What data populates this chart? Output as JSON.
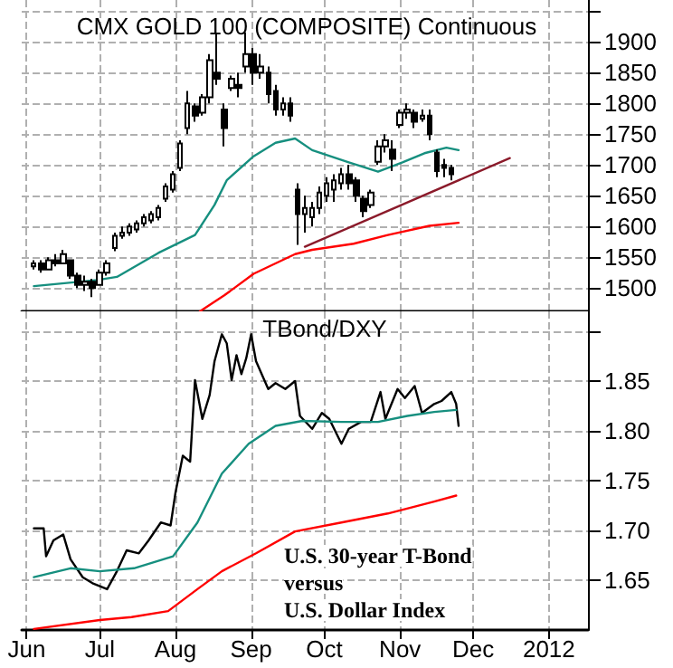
{
  "chart_data": [
    {
      "type": "candlestick",
      "title": "CMX GOLD 100 (COMPOSITE) Continuous",
      "grid": true,
      "tick_labels": "y",
      "line_style": "solid",
      "xlim": [
        "2011-05-30",
        "2012-01-17"
      ],
      "xticks": [
        {
          "value": "2011-06-01",
          "label": null
        },
        {
          "value": "2011-07-01",
          "label": null
        },
        {
          "value": "2011-08-01",
          "label": null
        },
        {
          "value": "2011-09-01",
          "label": null
        },
        {
          "value": "2011-10-01",
          "label": null
        },
        {
          "value": "2011-11-01",
          "label": null
        },
        {
          "value": "2011-12-01",
          "label": null
        },
        {
          "value": "2012-01-01",
          "label": null
        }
      ],
      "ylim": [
        1462,
        1968
      ],
      "yticks": [
        1500,
        1550,
        1600,
        1650,
        1700,
        1750,
        1800,
        1850,
        1900,
        {
          "value": 1950,
          "label": null
        }
      ],
      "x": [
        "2011-06-04",
        "2011-06-07",
        "2011-06-10",
        "2011-06-13",
        "2011-06-16",
        "2011-06-19",
        "2011-06-22",
        "2011-06-25",
        "2011-06-28",
        "2011-07-01",
        "2011-07-04",
        "2011-07-07",
        "2011-07-10",
        "2011-07-13",
        "2011-07-16",
        "2011-07-19",
        "2011-07-22",
        "2011-07-25",
        "2011-07-28",
        "2011-07-31",
        "2011-08-03",
        "2011-08-06",
        "2011-08-09",
        "2011-08-12",
        "2011-08-15",
        "2011-08-18",
        "2011-08-21",
        "2011-08-24",
        "2011-08-27",
        "2011-08-30",
        "2011-09-02",
        "2011-09-05",
        "2011-09-08",
        "2011-09-11",
        "2011-09-14",
        "2011-09-17",
        "2011-09-20",
        "2011-09-23",
        "2011-09-26",
        "2011-09-29",
        "2011-10-02",
        "2011-10-05",
        "2011-10-08",
        "2011-10-11",
        "2011-10-14",
        "2011-10-17",
        "2011-10-20",
        "2011-10-23",
        "2011-10-26",
        "2011-10-29",
        "2011-11-01",
        "2011-11-04",
        "2011-11-07",
        "2011-11-10",
        "2011-11-13",
        "2011-11-16",
        "2011-11-19",
        "2011-11-22"
      ],
      "ohlc": [
        [
          1535,
          1545,
          1530,
          1540
        ],
        [
          1540,
          1545,
          1525,
          1530
        ],
        [
          1530,
          1550,
          1530,
          1545
        ],
        [
          1545,
          1555,
          1535,
          1540
        ],
        [
          1540,
          1562,
          1540,
          1555
        ],
        [
          1545,
          1545,
          1515,
          1520
        ],
        [
          1520,
          1525,
          1500,
          1505
        ],
        [
          1505,
          1520,
          1495,
          1510
        ],
        [
          1510,
          1515,
          1485,
          1500
        ],
        [
          1505,
          1530,
          1505,
          1525
        ],
        [
          1525,
          1545,
          1520,
          1540
        ],
        [
          1565,
          1590,
          1560,
          1585
        ],
        [
          1585,
          1600,
          1580,
          1590
        ],
        [
          1590,
          1605,
          1585,
          1600
        ],
        [
          1595,
          1610,
          1590,
          1605
        ],
        [
          1605,
          1620,
          1600,
          1615
        ],
        [
          1610,
          1625,
          1605,
          1620
        ],
        [
          1615,
          1635,
          1610,
          1630
        ],
        [
          1645,
          1670,
          1640,
          1665
        ],
        [
          1660,
          1690,
          1655,
          1685
        ],
        [
          1695,
          1740,
          1690,
          1735
        ],
        [
          1760,
          1820,
          1750,
          1800
        ],
        [
          1795,
          1800,
          1770,
          1780
        ],
        [
          1785,
          1815,
          1780,
          1810
        ],
        [
          1810,
          1880,
          1800,
          1870
        ],
        [
          1850,
          1912,
          1830,
          1840
        ],
        [
          1790,
          1800,
          1730,
          1760
        ],
        [
          1825,
          1845,
          1820,
          1840
        ],
        [
          1830,
          1850,
          1810,
          1825
        ],
        [
          1860,
          1915,
          1850,
          1880
        ],
        [
          1880,
          1890,
          1830,
          1850
        ],
        [
          1850,
          1880,
          1840,
          1860
        ],
        [
          1850,
          1860,
          1800,
          1815
        ],
        [
          1820,
          1830,
          1780,
          1790
        ],
        [
          1790,
          1810,
          1780,
          1800
        ],
        [
          1800,
          1810,
          1770,
          1780
        ],
        [
          1660,
          1670,
          1570,
          1620
        ],
        [
          1620,
          1650,
          1590,
          1630
        ],
        [
          1615,
          1640,
          1600,
          1630
        ],
        [
          1630,
          1665,
          1620,
          1655
        ],
        [
          1650,
          1680,
          1640,
          1670
        ],
        [
          1660,
          1685,
          1640,
          1675
        ],
        [
          1670,
          1695,
          1660,
          1685
        ],
        [
          1685,
          1700,
          1660,
          1670
        ],
        [
          1675,
          1680,
          1640,
          1650
        ],
        [
          1645,
          1650,
          1615,
          1625
        ],
        [
          1635,
          1660,
          1630,
          1655
        ],
        [
          1705,
          1740,
          1700,
          1730
        ],
        [
          1730,
          1750,
          1720,
          1740
        ],
        [
          1725,
          1740,
          1690,
          1710
        ],
        [
          1765,
          1790,
          1760,
          1785
        ],
        [
          1785,
          1800,
          1775,
          1790
        ],
        [
          1785,
          1790,
          1760,
          1770
        ],
        [
          1775,
          1790,
          1770,
          1780
        ],
        [
          1780,
          1790,
          1740,
          1750
        ],
        [
          1720,
          1725,
          1680,
          1690
        ],
        [
          1700,
          1710,
          1680,
          1695
        ],
        [
          1695,
          1700,
          1675,
          1685
        ]
      ],
      "series": [
        {
          "type": "line",
          "color": "#168f7f",
          "x": [
            "2011-06-04",
            "2011-06-30",
            "2011-07-08",
            "2011-07-25",
            "2011-08-09",
            "2011-08-17",
            "2011-08-22",
            "2011-09-02",
            "2011-09-11",
            "2011-09-19",
            "2011-09-26",
            "2011-10-11",
            "2011-10-23",
            "2011-11-02",
            "2011-11-11",
            "2011-11-20",
            "2011-11-25"
          ],
          "values": [
            1503,
            1513,
            1518,
            1557,
            1586,
            1635,
            1675,
            1714,
            1736,
            1743,
            1724,
            1704,
            1689,
            1704,
            1719,
            1728,
            1724
          ]
        },
        {
          "type": "line",
          "color": "#ff0000",
          "x": [
            "2011-08-11",
            "2011-08-21",
            "2011-09-02",
            "2011-09-19",
            "2011-09-26",
            "2011-10-13",
            "2011-10-27",
            "2011-11-13",
            "2011-11-25"
          ],
          "values": [
            1462,
            1488,
            1523,
            1555,
            1562,
            1572,
            1586,
            1601,
            1606
          ]
        },
        {
          "type": "line",
          "color": "#8b1a2a",
          "x": [
            "2011-09-23",
            "2011-12-16"
          ],
          "values": [
            1567,
            1711
          ]
        }
      ]
    },
    {
      "type": "line",
      "title": "TBond/DXY",
      "grid": true,
      "line_style": "solid",
      "xlim": [
        "2011-05-30",
        "2012-01-17"
      ],
      "xticks": [
        {
          "value": "2011-06-01",
          "label": "Jun"
        },
        {
          "value": "2011-07-01",
          "label": "Jul"
        },
        {
          "value": "2011-08-01",
          "label": "Aug"
        },
        {
          "value": "2011-09-01",
          "label": "Sep"
        },
        {
          "value": "2011-10-01",
          "label": "Oct"
        },
        {
          "value": "2011-11-01",
          "label": "Nov"
        },
        {
          "value": "2011-12-01",
          "label": "Dec"
        },
        {
          "value": "2012-01-01",
          "label": "2012"
        }
      ],
      "ylim": [
        1.6,
        1.92
      ],
      "yticks": [
        1.65,
        {
          "value": 1.7,
          "label": "1.70"
        },
        1.75,
        {
          "value": 1.8,
          "label": "1.80"
        },
        1.85,
        {
          "value": 1.9,
          "label": null
        }
      ],
      "annotations": [
        "U.S. 30-year T-Bond",
        "versus",
        "U.S. Dollar Index"
      ],
      "series": [
        {
          "color": "#000000",
          "x": [
            "2011-06-04",
            "2011-06-08",
            "2011-06-09",
            "2011-06-12",
            "2011-06-16",
            "2011-06-19",
            "2011-06-24",
            "2011-06-28",
            "2011-07-04",
            "2011-07-08",
            "2011-07-12",
            "2011-07-17",
            "2011-07-21",
            "2011-07-26",
            "2011-07-30",
            "2011-08-01",
            "2011-08-04",
            "2011-08-07",
            "2011-08-09",
            "2011-08-12",
            "2011-08-15",
            "2011-08-17",
            "2011-08-20",
            "2011-08-22",
            "2011-08-24",
            "2011-08-26",
            "2011-08-28",
            "2011-08-30",
            "2011-09-01",
            "2011-09-03",
            "2011-09-08",
            "2011-09-11",
            "2011-09-15",
            "2011-09-19",
            "2011-09-21",
            "2011-09-26",
            "2011-09-30",
            "2011-10-03",
            "2011-10-08",
            "2011-10-11",
            "2011-10-16",
            "2011-10-20",
            "2011-10-24",
            "2011-10-26",
            "2011-10-31",
            "2011-11-03",
            "2011-11-07",
            "2011-11-10",
            "2011-11-15",
            "2011-11-18",
            "2011-11-22",
            "2011-11-24",
            "2011-11-25"
          ],
          "values": [
            1.702,
            1.702,
            1.674,
            1.69,
            1.696,
            1.671,
            1.653,
            1.647,
            1.641,
            1.659,
            1.68,
            1.677,
            1.69,
            1.708,
            1.705,
            1.738,
            1.775,
            1.769,
            1.851,
            1.812,
            1.836,
            1.87,
            1.897,
            1.888,
            1.851,
            1.876,
            1.857,
            1.873,
            1.897,
            1.87,
            1.842,
            1.848,
            1.842,
            1.85,
            1.815,
            1.802,
            1.818,
            1.812,
            1.787,
            1.802,
            1.809,
            1.809,
            1.839,
            1.812,
            1.842,
            1.833,
            1.845,
            1.818,
            1.827,
            1.83,
            1.839,
            1.827,
            1.805
          ]
        },
        {
          "color": "#168f7f",
          "x": [
            "2011-06-04",
            "2011-06-19",
            "2011-07-01",
            "2011-07-15",
            "2011-07-31",
            "2011-08-10",
            "2011-08-20",
            "2011-08-31",
            "2011-09-11",
            "2011-09-22",
            "2011-10-08",
            "2011-10-23",
            "2011-11-04",
            "2011-11-15",
            "2011-11-24"
          ],
          "values": [
            1.653,
            1.662,
            1.659,
            1.662,
            1.674,
            1.708,
            1.757,
            1.787,
            1.805,
            1.81,
            1.809,
            1.809,
            1.815,
            1.819,
            1.821
          ]
        },
        {
          "color": "#ff0000",
          "x": [
            "2011-06-04",
            "2011-07-01",
            "2011-07-14",
            "2011-07-29",
            "2011-08-10",
            "2011-08-20",
            "2011-09-03",
            "2011-09-19",
            "2011-10-08",
            "2011-10-27",
            "2011-11-15",
            "2011-11-24"
          ],
          "values": [
            1.601,
            1.61,
            1.613,
            1.619,
            1.641,
            1.659,
            1.677,
            1.699,
            1.708,
            1.717,
            1.729,
            1.735
          ]
        }
      ]
    }
  ]
}
